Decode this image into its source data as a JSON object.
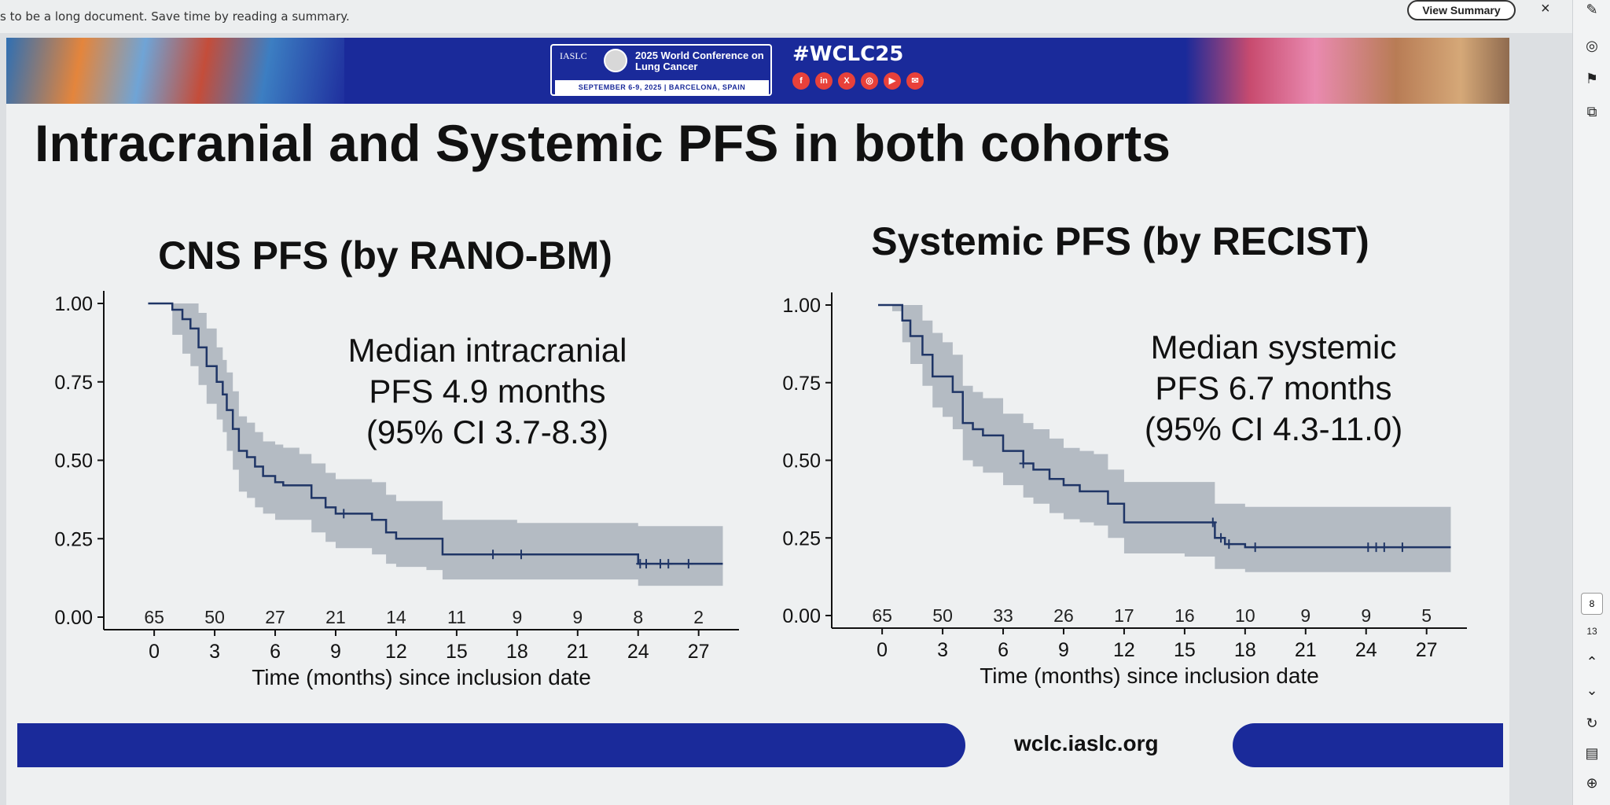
{
  "summary_bar": {
    "text": "s to be a long document. Save time by reading a summary.",
    "button_label": "View Summary",
    "close_label": "×"
  },
  "toolbar": {
    "page_current": "8",
    "page_total": "13"
  },
  "banner": {
    "org": "IASLC",
    "conference": "2025 World Conference on Lung Cancer",
    "dates": "SEPTEMBER 6-9, 2025 | BARCELONA, SPAIN",
    "hashtag": "#WCLC25",
    "social": [
      "f",
      "in",
      "X",
      "◎",
      "▶",
      "✉"
    ]
  },
  "slide_title": "Intracranial and Systemic PFS in both cohorts",
  "footer_url": "wclc.iaslc.org",
  "colors": {
    "banner": "#1a2a9a",
    "curve": "#1f3566",
    "ci_band": "#a9b2bb",
    "accent_red": "#e8413a"
  },
  "chart_data": [
    {
      "type": "line",
      "title": "CNS PFS (by RANO-BM)",
      "xlabel": "Time (months) since inclusion date",
      "ylabel": "",
      "xlim": [
        -2.5,
        29
      ],
      "ylim": [
        0,
        1.0
      ],
      "xticks": [
        0,
        3,
        6,
        9,
        12,
        15,
        18,
        21,
        24,
        27
      ],
      "yticks": [
        "0.00",
        "0.25",
        "0.50",
        "0.75",
        "1.00"
      ],
      "at_risk": [
        "65",
        "50",
        "27",
        "21",
        "14",
        "11",
        "9",
        "9",
        "8",
        "2"
      ],
      "annotation": [
        "Median intracranial",
        "PFS 4.9 months",
        "(95% CI 3.7-8.3)"
      ],
      "series": [
        {
          "x": [
            -0.3,
            0.5,
            0.9,
            1.4,
            1.8,
            2.2,
            2.6,
            3.1,
            3.4,
            3.6,
            3.9,
            4.2,
            4.6,
            5.0,
            5.4,
            6.0,
            6.4,
            7.2,
            7.8,
            8.5,
            9.0,
            9.8,
            10.8,
            11.5,
            12.0,
            13.5,
            14.3,
            16.0,
            18.0,
            20.0,
            23.0,
            24.0,
            25.0,
            26.0,
            28.2
          ],
          "y": [
            1.0,
            1.0,
            0.98,
            0.95,
            0.92,
            0.86,
            0.8,
            0.75,
            0.71,
            0.66,
            0.6,
            0.53,
            0.51,
            0.48,
            0.45,
            0.43,
            0.42,
            0.42,
            0.38,
            0.35,
            0.33,
            0.33,
            0.31,
            0.27,
            0.25,
            0.25,
            0.2,
            0.2,
            0.2,
            0.2,
            0.2,
            0.17,
            0.17,
            0.17,
            0.17
          ],
          "ci_upper": [
            1.0,
            1.0,
            1.0,
            1.0,
            1.0,
            0.97,
            0.92,
            0.86,
            0.82,
            0.78,
            0.72,
            0.64,
            0.62,
            0.59,
            0.56,
            0.55,
            0.54,
            0.52,
            0.49,
            0.46,
            0.44,
            0.44,
            0.43,
            0.39,
            0.37,
            0.37,
            0.31,
            0.31,
            0.3,
            0.3,
            0.3,
            0.29,
            0.29,
            0.29,
            0.29
          ],
          "ci_lower": [
            1.0,
            1.0,
            0.9,
            0.84,
            0.8,
            0.74,
            0.68,
            0.63,
            0.59,
            0.53,
            0.47,
            0.4,
            0.38,
            0.35,
            0.33,
            0.31,
            0.31,
            0.31,
            0.27,
            0.24,
            0.22,
            0.22,
            0.2,
            0.17,
            0.16,
            0.15,
            0.12,
            0.12,
            0.12,
            0.12,
            0.12,
            0.1,
            0.1,
            0.1,
            0.1
          ]
        }
      ],
      "censor_x": [
        9.4,
        16.8,
        18.2,
        24.1,
        24.4,
        25.1,
        25.5,
        26.5
      ]
    },
    {
      "type": "line",
      "title": "Systemic PFS (by RECIST)",
      "xlabel": "Time (months) since inclusion date",
      "ylabel": "",
      "xlim": [
        -2.5,
        29
      ],
      "ylim": [
        0,
        1.0
      ],
      "xticks": [
        0,
        3,
        6,
        9,
        12,
        15,
        18,
        21,
        24,
        27
      ],
      "yticks": [
        "0.00",
        "0.25",
        "0.50",
        "0.75",
        "1.00"
      ],
      "at_risk": [
        "65",
        "50",
        "33",
        "26",
        "17",
        "16",
        "10",
        "9",
        "9",
        "5"
      ],
      "annotation": [
        "Median systemic",
        "PFS 6.7 months",
        "(95% CI 4.3-11.0)"
      ],
      "series": [
        {
          "x": [
            -0.2,
            0.5,
            1.0,
            1.4,
            2.0,
            2.5,
            3.0,
            3.5,
            4.0,
            4.5,
            5.0,
            6.0,
            7.0,
            7.5,
            8.3,
            9.0,
            9.8,
            10.5,
            11.2,
            12.0,
            13.0,
            15.0,
            16.5,
            17.0,
            18.0,
            20.0,
            24.0,
            26.0,
            28.2
          ],
          "y": [
            1.0,
            1.0,
            0.95,
            0.9,
            0.84,
            0.77,
            0.77,
            0.72,
            0.62,
            0.6,
            0.58,
            0.53,
            0.49,
            0.47,
            0.44,
            0.42,
            0.4,
            0.4,
            0.36,
            0.3,
            0.3,
            0.3,
            0.25,
            0.23,
            0.22,
            0.22,
            0.22,
            0.22,
            0.22
          ],
          "ci_upper": [
            1.0,
            1.0,
            1.0,
            1.0,
            0.95,
            0.91,
            0.88,
            0.84,
            0.74,
            0.72,
            0.7,
            0.65,
            0.62,
            0.6,
            0.57,
            0.54,
            0.53,
            0.52,
            0.47,
            0.43,
            0.43,
            0.43,
            0.36,
            0.36,
            0.35,
            0.35,
            0.35,
            0.35,
            0.35
          ],
          "ci_lower": [
            1.0,
            0.98,
            0.88,
            0.81,
            0.74,
            0.67,
            0.64,
            0.6,
            0.5,
            0.48,
            0.46,
            0.42,
            0.38,
            0.36,
            0.33,
            0.31,
            0.3,
            0.29,
            0.25,
            0.2,
            0.2,
            0.19,
            0.15,
            0.15,
            0.14,
            0.14,
            0.14,
            0.14,
            0.14
          ]
        }
      ],
      "censor_x": [
        7.0,
        16.4,
        16.8,
        17.2,
        18.5,
        24.1,
        24.5,
        24.9,
        25.8
      ]
    }
  ]
}
